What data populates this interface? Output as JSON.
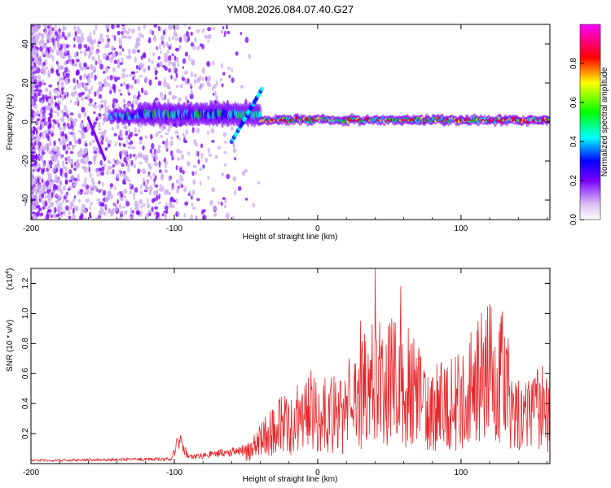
{
  "title": "YM08.2026.084.07.40.G27",
  "chart_data": [
    {
      "type": "heatmap",
      "name": "spectrogram",
      "xlabel": "Height of straight line (km)",
      "ylabel": "Frequency (Hz)",
      "xlim": [
        -200,
        162
      ],
      "ylim": [
        -50,
        50
      ],
      "x_ticks": [
        -200,
        -100,
        0,
        100
      ],
      "y_ticks": [
        -40,
        -20,
        0,
        20,
        40
      ],
      "colorbar_label": "Normalized spectral amplitude",
      "colorbar_range": [
        0,
        1
      ],
      "colorbar_ticks": [
        "0.0",
        "0.2",
        "0.4",
        "0.6",
        "0.8"
      ],
      "colorbar_tick_values": [
        0.0,
        0.2,
        0.4,
        0.6,
        0.8
      ],
      "colors": [
        "#ffffff",
        "#c9a8f0",
        "#7a00ff",
        "#0000ff",
        "#00ffff",
        "#00ff00",
        "#ffff00",
        "#ff0000",
        "#ff00ff"
      ],
      "noise_region_km": [
        -200,
        -100
      ],
      "band_segments": [
        {
          "x": [
            -145,
            -125
          ],
          "center_hz": 3,
          "half_width_hz": 3
        },
        {
          "x": [
            -125,
            -40
          ],
          "center_hz": 4,
          "half_width_hz": 5
        },
        {
          "x": [
            -40,
            162
          ],
          "center_hz": 1,
          "half_width_hz": 1.5
        }
      ],
      "branch": {
        "x": [
          -60,
          -38
        ],
        "hz": [
          -10,
          18
        ]
      }
    },
    {
      "type": "line",
      "name": "snr",
      "xlabel": "Height of straight line (km)",
      "ylabel": "SNR (10 * v/v)",
      "y_multiplier": "(x10",
      "y_multiplier_exp": "4",
      "y_multiplier_close": ")",
      "xlim": [
        -200,
        162
      ],
      "ylim": [
        0,
        1.3
      ],
      "x_ticks": [
        -200,
        -100,
        0,
        100
      ],
      "y_ticks": [
        0.2,
        0.4,
        0.6,
        0.8,
        1.0,
        1.2
      ],
      "color": "#e8262a",
      "anchor_points": {
        "x": [
          -200,
          -102,
          -97,
          -90,
          -50,
          -30,
          -15,
          0,
          18,
          25,
          40,
          60,
          80,
          100,
          110,
          125,
          130,
          140,
          162
        ],
        "y": [
          0.02,
          0.03,
          0.16,
          0.04,
          0.09,
          0.3,
          0.4,
          0.5,
          0.4,
          0.55,
          0.78,
          0.7,
          0.55,
          0.55,
          0.7,
          0.9,
          0.7,
          0.42,
          0.5
        ]
      },
      "peaks": [
        {
          "x": 22,
          "y": 0.7
        },
        {
          "x": 30,
          "y": 0.95
        },
        {
          "x": 40,
          "y": 1.3
        },
        {
          "x": 58,
          "y": 1.18
        },
        {
          "x": 120,
          "y": 1.06
        },
        {
          "x": 128,
          "y": 0.98
        }
      ]
    }
  ]
}
